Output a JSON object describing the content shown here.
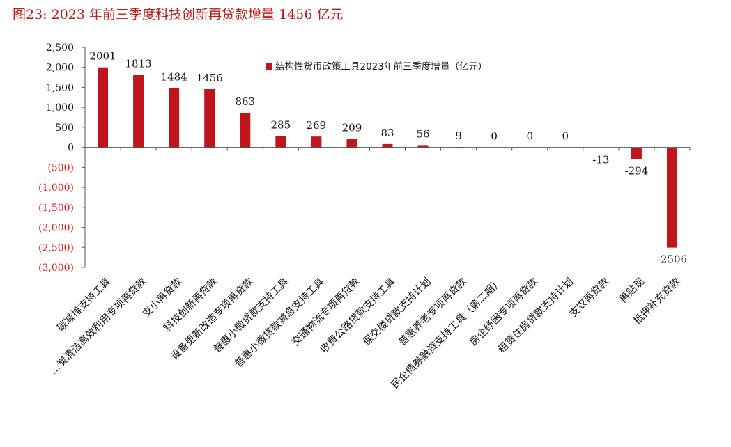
{
  "figure": {
    "title": "图23:    2023 年前三季度科技创新再贷款增量 1456 亿元"
  },
  "colors": {
    "bar": "#c0151b",
    "accent": "#c0151b",
    "negative_tick": "#e0161b",
    "text": "#111111"
  },
  "chart_data": {
    "type": "bar",
    "categories": [
      "碳减排支持工具",
      "煤炭清洁高效利用专项再贷款",
      "支小再贷款",
      "科技创新再贷款",
      "设备更新改造专项再贷款",
      "普惠小微贷款支持工具",
      "普惠小微贷款减息支持工具",
      "交通物流专项再贷款",
      "收费公路贷款支持工具",
      "保交楼贷款支持计划",
      "普惠养老专项再贷款",
      "民企债券融资支持工具（第二期）",
      "房企纾困专项再贷款",
      "租赁住房贷款支持计划",
      "支农再贷款",
      "再贴现",
      "抵押补充贷款"
    ],
    "category_display": [
      "碳减排支持工具",
      "…炭清洁高效利用专项再贷款",
      "支小再贷款",
      "科技创新再贷款",
      "设备更新改造专项再贷款",
      "普惠小微贷款支持工具",
      "普惠小微贷款减息支持工具",
      "交通物流专项再贷款",
      "收费公路贷款支持工具",
      "保交楼贷款支持计划",
      "普惠养老专项再贷款",
      "民企债券融资支持工具（第二期）",
      "房企纾困专项再贷款",
      "租赁住房贷款支持计划",
      "支农再贷款",
      "再贴现",
      "抵押补充贷款"
    ],
    "series": [
      {
        "name": "结构性货币政策工具2023年前三季度增量（亿元）",
        "values": [
          2001,
          1813,
          1484,
          1456,
          863,
          285,
          269,
          209,
          83,
          56,
          9,
          0,
          0,
          0,
          -13,
          -294,
          -2506
        ]
      }
    ],
    "data_labels": [
      "2001",
      "1813",
      "1484",
      "1456",
      "863",
      "285",
      "269",
      "209",
      "83",
      "56",
      "9",
      "0",
      "0",
      "0",
      "-13",
      "-294",
      "-2506"
    ],
    "ylim": [
      -3000,
      2500
    ],
    "yticks": [
      2500,
      2000,
      1500,
      1000,
      500,
      0,
      -500,
      -1000,
      -1500,
      -2000,
      -2500,
      -3000
    ],
    "ytick_labels": [
      "2,500",
      "2,000",
      "1,500",
      "1,000",
      "500",
      "0",
      "(500)",
      "(1,000)",
      "(1,500)",
      "(2,000)",
      "(2,500)",
      "(3,000)"
    ],
    "legend_position": "top-center",
    "grid": false
  }
}
